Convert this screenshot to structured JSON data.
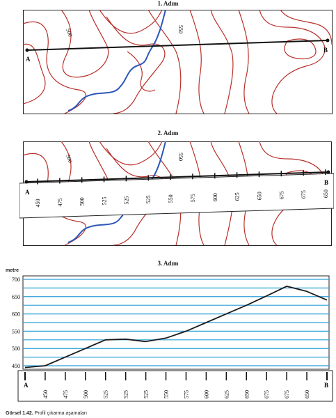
{
  "steps": {
    "step1": "1. Adım",
    "step2": "2. Adım",
    "step3": "3. Adım"
  },
  "map": {
    "point_a": "A",
    "point_b": "B",
    "contour_label_500": "500",
    "contour_label_550": "550"
  },
  "strip_labels": [
    "450",
    "475",
    "500",
    "525",
    "525",
    "525",
    "550",
    "575",
    "600",
    "625",
    "650",
    "675",
    "675",
    "650"
  ],
  "chart_data": {
    "type": "line",
    "ylabel": "metre",
    "yticks": [
      450,
      500,
      550,
      600,
      650,
      700
    ],
    "ylim": [
      440,
      710
    ],
    "x_points": [
      "A",
      "450",
      "475",
      "500",
      "525",
      "525",
      "525",
      "550",
      "575",
      "600",
      "625",
      "650",
      "675",
      "675",
      "650",
      "B"
    ],
    "series": [
      {
        "values": [
          445,
          450,
          475,
          500,
          525,
          527,
          520,
          530,
          550,
          575,
          600,
          625,
          652,
          680,
          665,
          640
        ]
      }
    ],
    "grid": true,
    "line_color": "#1a1a1a",
    "grid_color": "#2a9fd6"
  },
  "caption": {
    "label": "Görsel 1.42.",
    "text": " Profil çıkarma aşamaları"
  },
  "colors": {
    "contour": "#b8302a",
    "river": "#2c56b8",
    "gridline": "#2a9fd6"
  }
}
